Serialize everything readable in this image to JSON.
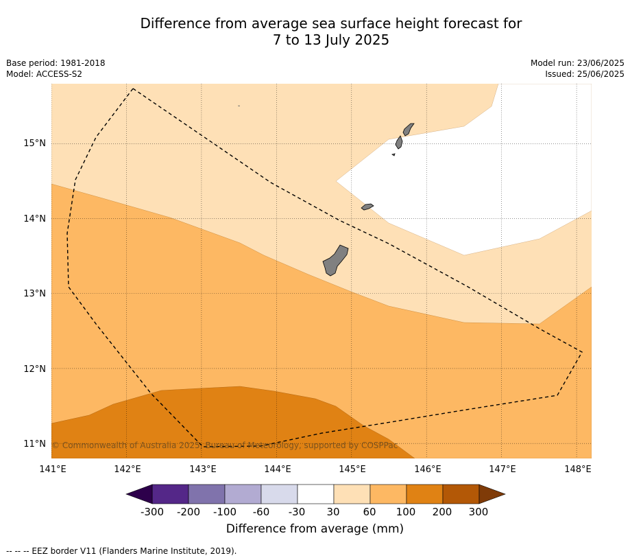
{
  "header": {
    "title_line1": "Difference from average sea surface height forecast for",
    "title_line2": "7 to 13 July 2025",
    "base_period": "Base period: 1981-2018",
    "model": "Model: ACCESS-S2",
    "model_run": "Model run: 23/06/2025",
    "issued": "Issued: 25/06/2025"
  },
  "map": {
    "lon_ticks": [
      "141°E",
      "142°E",
      "143°E",
      "144°E",
      "145°E",
      "146°E",
      "147°E",
      "148°E"
    ],
    "lat_ticks": [
      "15°N",
      "14°N",
      "13°N",
      "12°N",
      "11°N"
    ],
    "lon_range": [
      141,
      148.2
    ],
    "lat_range": [
      10.8,
      15.8
    ],
    "gridlines": true,
    "copyright": "© Commonwealth of Australia 2025, Bureau of Meteorology, supported by COSPPac",
    "land_color": "#808080",
    "eez_style": "dashed"
  },
  "colorbar": {
    "labels": [
      "-300",
      "-200",
      "-100",
      "-60",
      "-30",
      "30",
      "60",
      "100",
      "200",
      "300"
    ],
    "colors": [
      "#2d004b",
      "#542788",
      "#8073ac",
      "#b2abd2",
      "#d8daeb",
      "#ffffff",
      "#fee0b6",
      "#fdb863",
      "#e08214",
      "#b35806",
      "#7f3b08"
    ],
    "title": "Difference from average (mm)"
  },
  "footer": {
    "legend_text": "--  --  -- EEZ border V11 (Flanders Marine Institute, 2019)."
  }
}
